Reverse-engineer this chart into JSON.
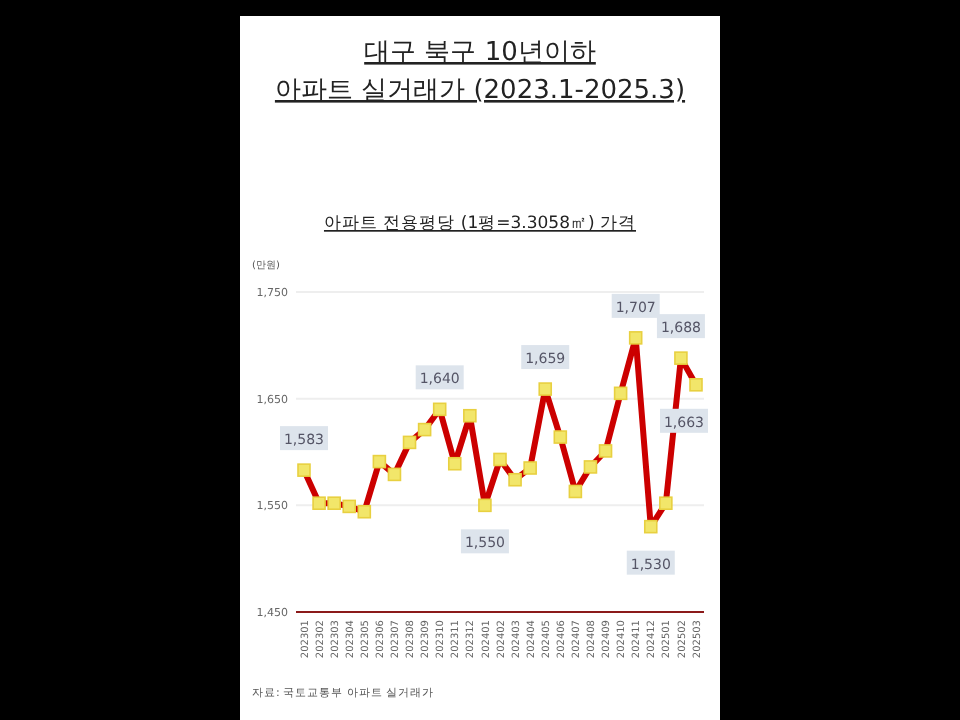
{
  "chart_data": {
    "type": "line",
    "title": "대구 북구 10년이하\n아파트 실거래가 (2023.1-2025.3)",
    "subtitle": "아파트 전용평당 (1평=3.3058㎡) 가격",
    "ylabel": "(만원)",
    "categories": [
      "202301",
      "202302",
      "202303",
      "202304",
      "202305",
      "202306",
      "202307",
      "202308",
      "202309",
      "202310",
      "202311",
      "202312",
      "202401",
      "202402",
      "202403",
      "202404",
      "202405",
      "202406",
      "202407",
      "202408",
      "202409",
      "202410",
      "202411",
      "202412",
      "202501",
      "202502",
      "202503"
    ],
    "series": [
      {
        "color": "#cc0000",
        "values": [
          1583,
          1552,
          1552,
          1549,
          1544,
          1591,
          1579,
          1609,
          1621,
          1640,
          1589,
          1634,
          1550,
          1593,
          1574,
          1585,
          1659,
          1614,
          1563,
          1586,
          1601,
          1655,
          1707,
          1530,
          1552,
          1688,
          1663
        ],
        "value_labels": [
          "1,583",
          null,
          null,
          null,
          null,
          null,
          null,
          null,
          null,
          "1,640",
          null,
          null,
          "1,550",
          null,
          null,
          null,
          "1,659",
          null,
          null,
          null,
          null,
          null,
          "1,707",
          "1,530",
          null,
          "1,688",
          "1,663"
        ]
      }
    ],
    "ylim": [
      1450,
      1750
    ],
    "yticks": [
      {
        "value": 1450,
        "label": "1,450"
      },
      {
        "value": 1550,
        "label": "1,550"
      },
      {
        "value": 1650,
        "label": "1,650"
      },
      {
        "value": 1750,
        "label": "1,750"
      }
    ],
    "grid": "y",
    "marker": "square",
    "line_style": "solid",
    "annotations": [
      "자료: 국토교통부 아파트 실거래가"
    ]
  }
}
